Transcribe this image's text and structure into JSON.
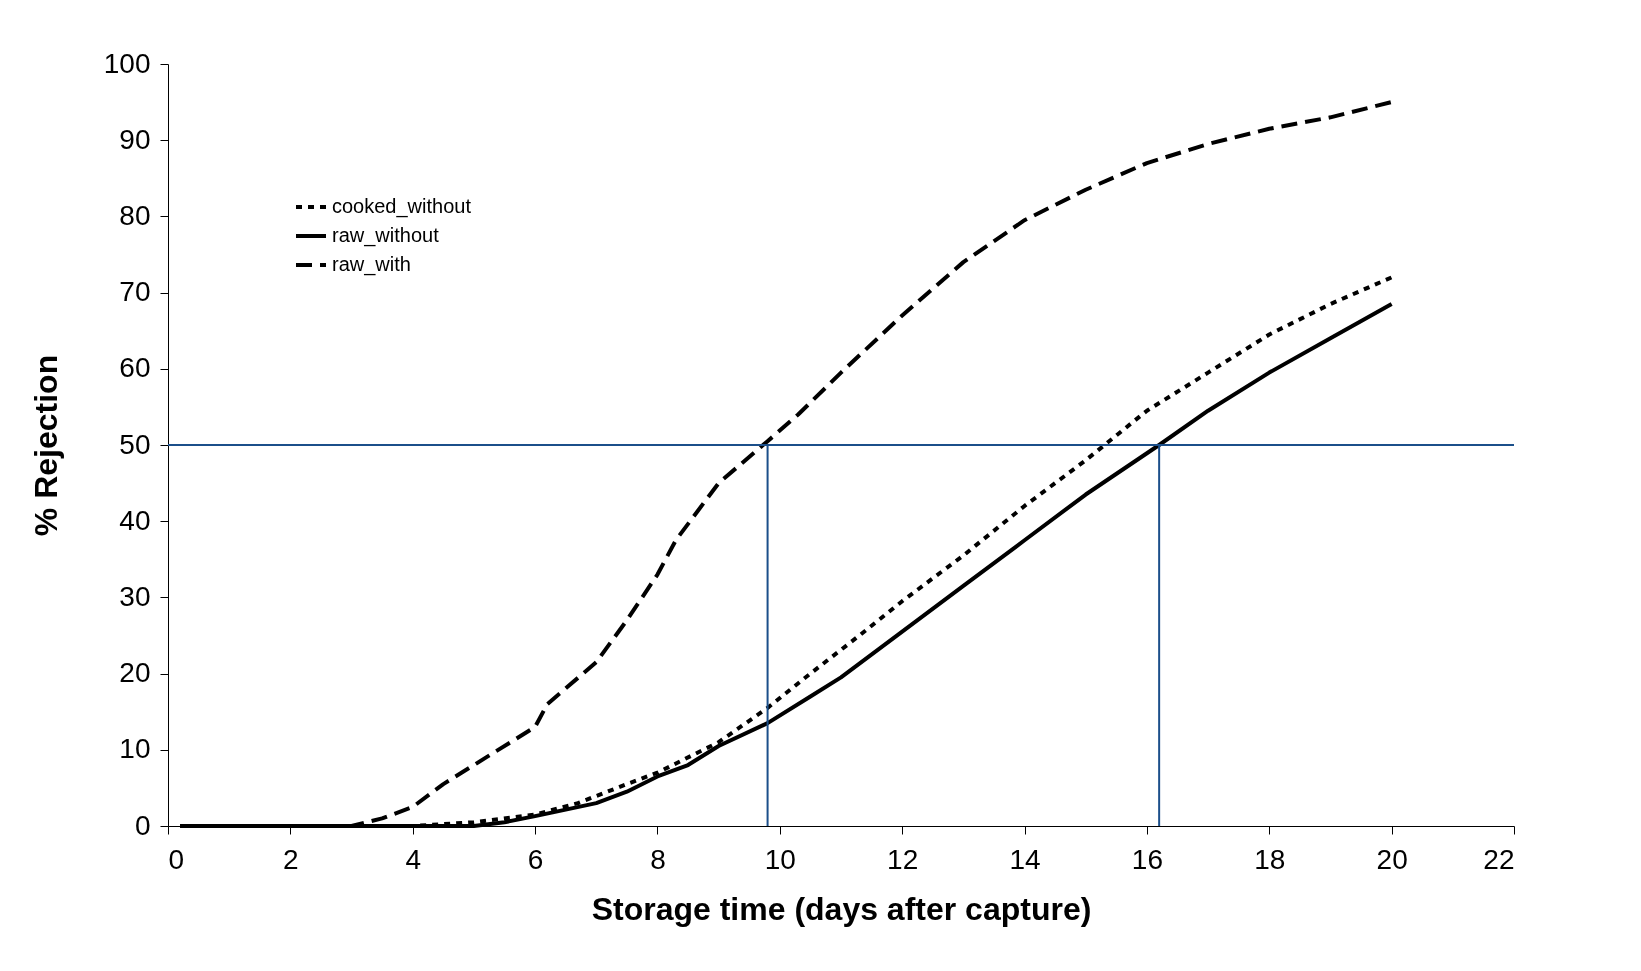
{
  "chart_data": {
    "type": "line",
    "xlabel": "Storage time (days after capture)",
    "ylabel": "% Rejection",
    "xlim": [
      0,
      22
    ],
    "ylim": [
      0,
      100
    ],
    "xticks": [
      0,
      2,
      4,
      6,
      8,
      10,
      12,
      14,
      16,
      18,
      20,
      22
    ],
    "yticks": [
      0,
      10,
      20,
      30,
      40,
      50,
      60,
      70,
      80,
      90,
      100
    ],
    "grid": false,
    "legend": "top left",
    "marker": "none",
    "series": [
      {
        "name": "cooked_without",
        "color": "#000000",
        "line_style": "dotted",
        "x": [
          0.2,
          1,
          2,
          3,
          4,
          5,
          6,
          6.7,
          7.5,
          8,
          9,
          9.8,
          10.5,
          11.3,
          12,
          13,
          14,
          15,
          16,
          17,
          18,
          19,
          20
        ],
        "values": [
          0,
          0,
          0,
          0,
          0,
          0.5,
          1.5,
          3,
          5.5,
          7,
          11,
          15.5,
          20,
          25,
          29.5,
          35.5,
          42,
          48,
          54.5,
          59.5,
          64.5,
          68.5,
          72
        ]
      },
      {
        "name": "raw_without",
        "color": "#000000",
        "line_style": "solid",
        "x": [
          0.2,
          1,
          2,
          3,
          4,
          5,
          5.5,
          6,
          7,
          7.5,
          8,
          8.5,
          9,
          9.8,
          10.5,
          11,
          12,
          13,
          14,
          15,
          16.2,
          17,
          18,
          19,
          20
        ],
        "values": [
          0,
          0,
          0,
          0,
          0,
          0,
          0.5,
          1.3,
          3,
          4.5,
          6.5,
          8,
          10.5,
          13.5,
          17,
          19.5,
          25.5,
          31.5,
          37.5,
          43.5,
          50,
          54.5,
          59.5,
          64,
          68.5
        ]
      },
      {
        "name": "raw_with",
        "color": "#000000",
        "line_style": "dashed",
        "x": [
          0.2,
          1,
          2,
          3,
          3.5,
          4,
          4.5,
          5.2,
          6,
          6.2,
          7,
          7.5,
          8,
          8.3,
          9,
          9.8,
          10.3,
          11,
          12,
          13,
          14,
          15,
          16,
          17,
          18,
          19,
          20
        ],
        "values": [
          0,
          0,
          0,
          0,
          1,
          2.5,
          5.5,
          9,
          13,
          16,
          21.5,
          27,
          33,
          37.5,
          45,
          50.5,
          54,
          59.5,
          67,
          74,
          79.5,
          83.5,
          87,
          89.5,
          91.5,
          93,
          95
        ]
      }
    ],
    "ref_lines": [
      {
        "axis": "y",
        "value": 50,
        "color": "#1b4f8a"
      },
      {
        "axis": "x",
        "value": 9.8,
        "color": "#1b4f8a"
      },
      {
        "axis": "x",
        "value": 16.2,
        "color": "#1b4f8a"
      }
    ]
  }
}
